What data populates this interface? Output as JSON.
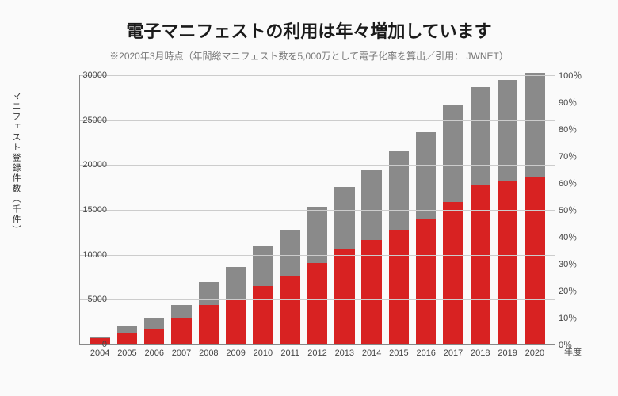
{
  "title": "電子マニフェストの利用は年々増加しています",
  "subtitle": "※2020年3月時点（年間総マニフェスト数を5,000万として電子化率を算出／引用： JWNET）",
  "title_fontsize": 22,
  "subtitle_fontsize": 12,
  "ylabel_left": "マニフェスト登録件数（千件）",
  "ylabel_fontsize": 11,
  "chart": {
    "type": "stacked-bar",
    "background_color": "#fafafa",
    "grid_color": "#cccccc",
    "axis_color": "#888888",
    "red_color": "#d82222",
    "gray_color": "#8a8a8a",
    "tick_fontsize": 11,
    "xlabel_fontsize": 11,
    "bar_width_ratio": 0.74,
    "ylim_left": [
      0,
      30000
    ],
    "ylim_right": [
      0,
      100
    ],
    "yticks_left": [
      0,
      5000,
      10000,
      15000,
      20000,
      25000,
      30000
    ],
    "yticks_right": [
      {
        "v": 0,
        "label": "0％"
      },
      {
        "v": 10,
        "label": "10％"
      },
      {
        "v": 20,
        "label": "20％"
      },
      {
        "v": 30,
        "label": "30％"
      },
      {
        "v": 40,
        "label": "40％"
      },
      {
        "v": 50,
        "label": "50％"
      },
      {
        "v": 60,
        "label": "60％"
      },
      {
        "v": 70,
        "label": "70％"
      },
      {
        "v": 80,
        "label": "80％"
      },
      {
        "v": 90,
        "label": "90％"
      },
      {
        "v": 100,
        "label": "100％"
      }
    ],
    "x_suffix": "年度",
    "categories": [
      "2004",
      "2005",
      "2006",
      "2007",
      "2008",
      "2009",
      "2010",
      "2011",
      "2012",
      "2013",
      "2014",
      "2015",
      "2016",
      "2017",
      "2018",
      "2019",
      "2020"
    ],
    "series_red": [
      600,
      1200,
      1700,
      2800,
      4300,
      5000,
      6400,
      7600,
      9000,
      10500,
      11600,
      12600,
      13900,
      15800,
      17700,
      18100,
      18500
    ],
    "series_gray": [
      100,
      700,
      1100,
      1500,
      2600,
      3600,
      4500,
      5000,
      6300,
      7000,
      7700,
      8800,
      9700,
      10800,
      10900,
      11300,
      11700
    ]
  }
}
